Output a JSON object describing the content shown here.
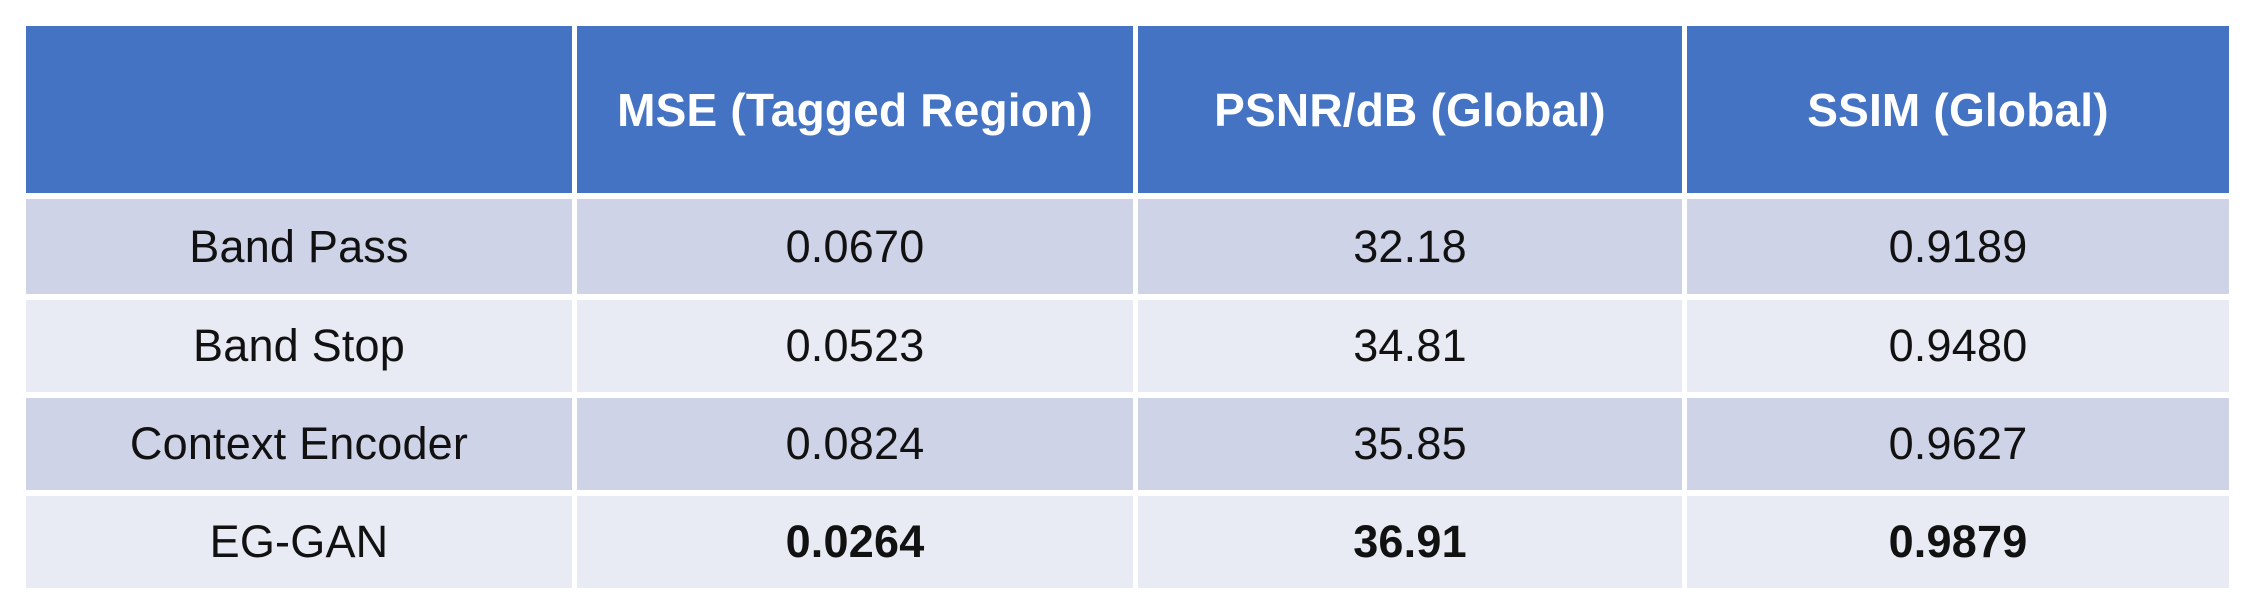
{
  "colors": {
    "header_bg": "#4573C3",
    "band_dark": "#CFD3E7",
    "band_light": "#E9EBF4",
    "header_text": "#FFFFFF",
    "body_text": "#111111",
    "grid_white": "#FFFFFF"
  },
  "table": {
    "columns": [
      "",
      "MSE (Tagged Region)",
      "PSNR/dB (Global)",
      "SSIM (Global)"
    ],
    "rows": [
      {
        "label": "Band Pass",
        "values": [
          "0.0670",
          "32.18",
          "0.9189"
        ],
        "emphasis": false
      },
      {
        "label": "Band Stop",
        "values": [
          "0.0523",
          "34.81",
          "0.9480"
        ],
        "emphasis": false
      },
      {
        "label": "Context Encoder",
        "values": [
          "0.0824",
          "35.85",
          "0.9627"
        ],
        "emphasis": false
      },
      {
        "label": "EG-GAN",
        "values": [
          "0.0264",
          "36.91",
          "0.9879"
        ],
        "emphasis": true
      }
    ]
  }
}
